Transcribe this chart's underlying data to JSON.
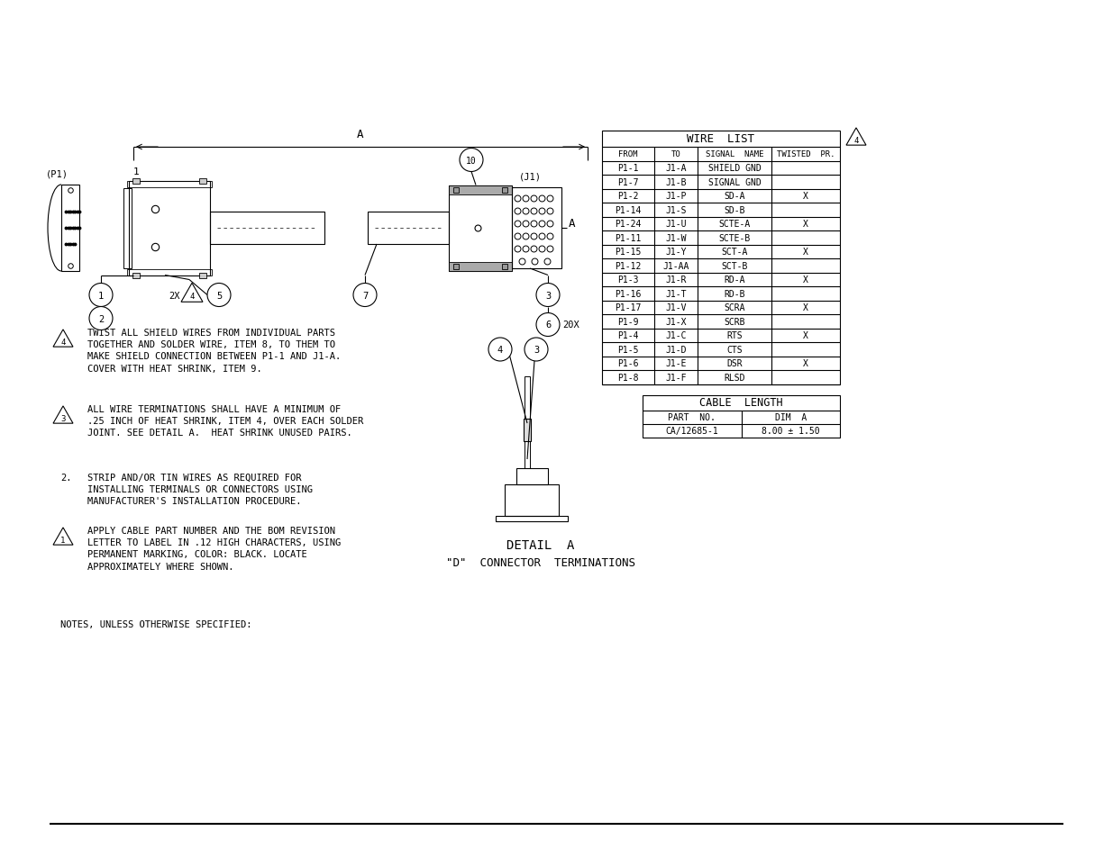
{
  "bg_color": "#ffffff",
  "wire_list_title": "WIRE  LIST",
  "wire_list_headers": [
    "FROM",
    "TO",
    "SIGNAL  NAME",
    "TWISTED  PR."
  ],
  "wire_list_rows": [
    [
      "P1-1",
      "J1-A",
      "SHIELD GND",
      ""
    ],
    [
      "P1-7",
      "J1-B",
      "SIGNAL GND",
      ""
    ],
    [
      "P1-2",
      "J1-P",
      "SD-A",
      "X"
    ],
    [
      "P1-14",
      "J1-S",
      "SD-B",
      ""
    ],
    [
      "P1-24",
      "J1-U",
      "SCTE-A",
      "X"
    ],
    [
      "P1-11",
      "J1-W",
      "SCTE-B",
      ""
    ],
    [
      "P1-15",
      "J1-Y",
      "SCT-A",
      "X"
    ],
    [
      "P1-12",
      "J1-AA",
      "SCT-B",
      ""
    ],
    [
      "P1-3",
      "J1-R",
      "RD-A",
      "X"
    ],
    [
      "P1-16",
      "J1-T",
      "RD-B",
      ""
    ],
    [
      "P1-17",
      "J1-V",
      "SCRA",
      "X"
    ],
    [
      "P1-9",
      "J1-X",
      "SCRB",
      ""
    ],
    [
      "P1-4",
      "J1-C",
      "RTS",
      "X"
    ],
    [
      "P1-5",
      "J1-D",
      "CTS",
      ""
    ],
    [
      "P1-6",
      "J1-E",
      "DSR",
      "X"
    ],
    [
      "P1-8",
      "J1-F",
      "RLSD",
      ""
    ]
  ],
  "cable_length_title": "CABLE  LENGTH",
  "cable_length_headers": [
    "PART  NO.",
    "DIM  A"
  ],
  "cable_length_row": [
    "CA/12685-1",
    "8.00 ± 1.50"
  ],
  "note4": "TWIST ALL SHIELD WIRES FROM INDIVIDUAL PARTS\nTOGETHER AND SOLDER WIRE, ITEM 8, TO THEM TO\nMAKE SHIELD CONNECTION BETWEEN P1-1 AND J1-A.\nCOVER WITH HEAT SHRINK, ITEM 9.",
  "note3": "ALL WIRE TERMINATIONS SHALL HAVE A MINIMUM OF\n.25 INCH OF HEAT SHRINK, ITEM 4, OVER EACH SOLDER\nJOINT. SEE DETAIL A.  HEAT SHRINK UNUSED PAIRS.",
  "note2": "STRIP AND/OR TIN WIRES AS REQUIRED FOR\nINSTALLING TERMINALS OR CONNECTORS USING\nMANUFACTURER'S INSTALLATION PROCEDURE.",
  "note1": "APPLY CABLE PART NUMBER AND THE BOM REVISION\nLETTER TO LABEL IN .12 HIGH CHARACTERS, USING\nPERMANENT MARKING, COLOR: BLACK. LOCATE\nAPPROXIMATELY WHERE SHOWN.",
  "notes_footer": "NOTES, UNLESS OTHERWISE SPECIFIED:",
  "detail_label": "DETAIL  A",
  "detail_subtitle": "\"D\"  CONNECTOR  TERMINATIONS"
}
